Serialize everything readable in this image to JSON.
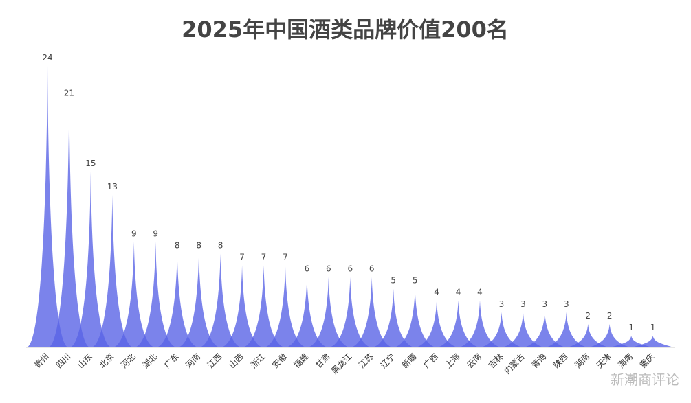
{
  "chart_data": {
    "type": "bar",
    "title": "2025年中国酒类品牌价值200名",
    "categories": [
      "贵州",
      "四川",
      "山东",
      "北京",
      "河北",
      "湖北",
      "广东",
      "河南",
      "江西",
      "山西",
      "浙江",
      "安徽",
      "福建",
      "甘肃",
      "黑龙江",
      "江苏",
      "辽宁",
      "新疆",
      "广西",
      "上海",
      "云南",
      "吉林",
      "内蒙古",
      "青海",
      "陕西",
      "湖南",
      "天津",
      "海南",
      "重庆"
    ],
    "series": [
      {
        "values": [
          24,
          21,
          15,
          13,
          9,
          9,
          8,
          8,
          8,
          7,
          7,
          7,
          6,
          6,
          6,
          6,
          5,
          5,
          4,
          4,
          4,
          3,
          3,
          3,
          3,
          2,
          2,
          1,
          1
        ]
      }
    ],
    "ylim": [
      0,
      24
    ],
    "xlabel": "",
    "ylabel": "",
    "grid": false,
    "bar_style": "pictorial-spike",
    "colors": {
      "bar_fill": "#5a64e6",
      "title": "#444444",
      "label": "#444444",
      "axis": "#cccccc"
    }
  },
  "watermark": "新潮商评论"
}
